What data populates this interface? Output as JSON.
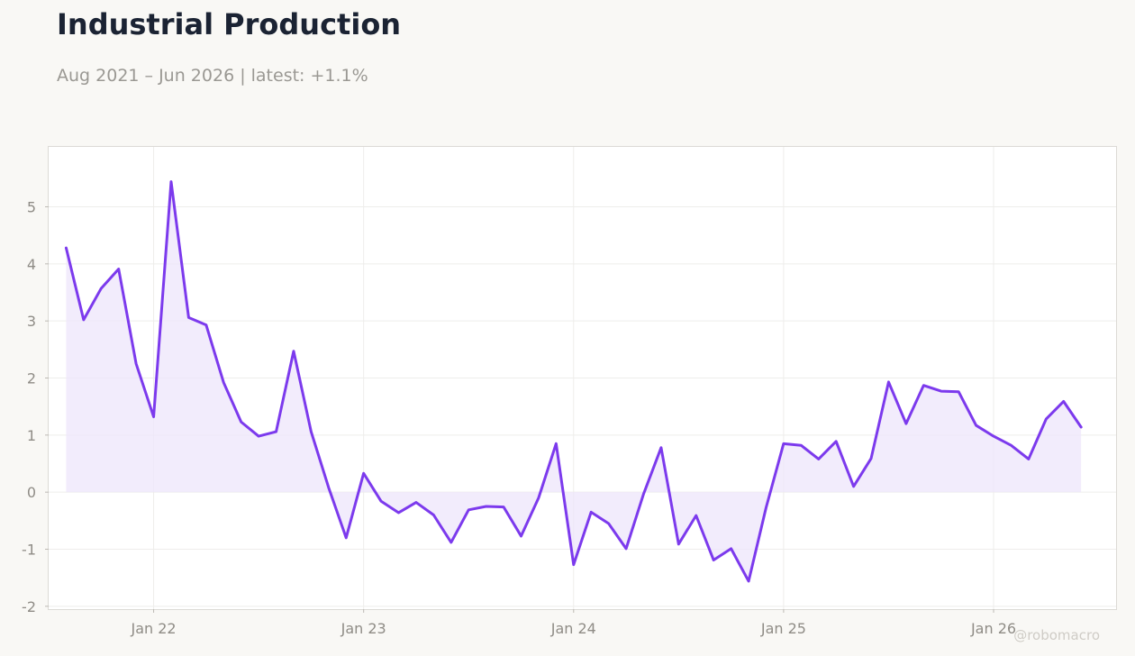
{
  "header": {
    "title": "Industrial Production",
    "subtitle": "Aug 2021 – Jun 2026 | latest: +1.1%"
  },
  "watermark": "@robomacro",
  "colors": {
    "line": "#7c3aed",
    "fill": "#ede6fb",
    "background": "#f9f8f5",
    "plot_background": "#ffffff",
    "grid": "#eeedeb",
    "title": "#1b2333",
    "muted": "#8f8c86"
  },
  "chart_data": {
    "type": "area",
    "title": "Industrial Production",
    "subtitle": "Aug 2021 – Jun 2026 | latest: +1.1%",
    "xlabel": "",
    "ylabel": "",
    "grid": true,
    "legend": "none",
    "x_ticks": [
      {
        "label": "Jan 22",
        "date": "2022-01"
      },
      {
        "label": "Jan 23",
        "date": "2023-01"
      },
      {
        "label": "Jan 24",
        "date": "2024-01"
      },
      {
        "label": "Jan 25",
        "date": "2025-01"
      },
      {
        "label": "Jan 26",
        "date": "2026-01"
      }
    ],
    "y_ticks": [
      -2,
      -1,
      0,
      1,
      2,
      3,
      4,
      5
    ],
    "xlim": [
      "2021-07",
      "2026-08"
    ],
    "ylim": [
      -2.05,
      6.05
    ],
    "x": [
      "2021-08",
      "2021-09",
      "2021-10",
      "2021-11",
      "2021-12",
      "2022-01",
      "2022-02",
      "2022-03",
      "2022-04",
      "2022-05",
      "2022-06",
      "2022-07",
      "2022-08",
      "2022-09",
      "2022-10",
      "2022-11",
      "2022-12",
      "2023-01",
      "2023-02",
      "2023-03",
      "2023-04",
      "2023-05",
      "2023-06",
      "2023-07",
      "2023-08",
      "2023-09",
      "2023-10",
      "2023-11",
      "2023-12",
      "2024-01",
      "2024-02",
      "2024-03",
      "2024-04",
      "2024-05",
      "2024-06",
      "2024-07",
      "2024-08",
      "2024-09",
      "2024-10",
      "2024-11",
      "2024-12",
      "2025-01",
      "2025-02",
      "2025-03",
      "2025-04",
      "2025-05",
      "2025-06",
      "2025-07",
      "2025-08",
      "2025-09",
      "2025-10",
      "2025-11",
      "2025-12",
      "2026-01",
      "2026-02",
      "2026-03",
      "2026-04",
      "2026-05",
      "2026-06"
    ],
    "series": [
      {
        "values": [
          4.28,
          3.02,
          3.57,
          3.91,
          2.25,
          1.32,
          5.44,
          3.06,
          2.93,
          1.92,
          1.23,
          0.98,
          1.06,
          2.47,
          1.06,
          0.08,
          -0.8,
          0.33,
          -0.16,
          -0.36,
          -0.18,
          -0.4,
          -0.88,
          -0.31,
          -0.25,
          -0.26,
          -0.77,
          -0.1,
          0.85,
          -1.27,
          -0.35,
          -0.55,
          -0.99,
          -0.03,
          0.78,
          -0.91,
          -0.41,
          -1.19,
          -0.99,
          -1.56,
          -0.27,
          0.85,
          0.82,
          0.58,
          0.89,
          0.1,
          0.59,
          1.93,
          1.2,
          1.87,
          1.77,
          1.76,
          1.17,
          0.98,
          0.82,
          0.58,
          1.28,
          1.59,
          1.14
        ]
      }
    ]
  }
}
